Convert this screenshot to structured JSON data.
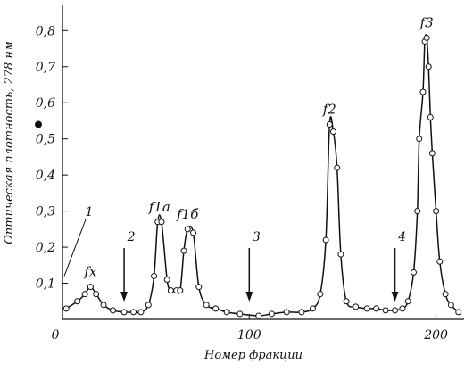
{
  "chart_data": {
    "type": "line",
    "xlabel": "Номер фракции",
    "ylabel": "Оптическая плотность, 278 нм",
    "xlim": [
      0,
      215
    ],
    "ylim": [
      0,
      0.87
    ],
    "x_ticks": [
      0,
      100,
      200
    ],
    "x_tick_labels": [
      "0",
      "100",
      "200"
    ],
    "y_ticks": [
      0.1,
      0.2,
      0.3,
      0.4,
      0.5,
      0.6,
      0.7,
      0.8
    ],
    "y_tick_labels": [
      "0,1",
      "0,2",
      "0,3",
      "0,4",
      "0,5",
      "0,6",
      "0,7",
      "0,8"
    ],
    "grid": false,
    "series": [
      {
        "x": [
          2,
          8,
          12,
          15,
          18,
          22,
          27,
          33,
          38,
          42,
          46,
          49,
          51,
          53,
          56,
          58,
          61,
          63,
          65,
          67,
          70,
          73,
          77,
          82,
          88,
          95,
          105,
          112,
          120,
          128,
          134,
          138,
          141,
          143,
          145,
          147,
          149,
          152,
          157,
          163,
          168,
          173,
          178,
          182,
          185,
          188,
          190,
          191,
          193,
          194,
          195,
          196,
          197,
          198,
          200,
          202,
          205,
          208,
          212
        ],
        "y": [
          0.03,
          0.05,
          0.07,
          0.09,
          0.07,
          0.04,
          0.025,
          0.02,
          0.02,
          0.02,
          0.04,
          0.12,
          0.27,
          0.27,
          0.11,
          0.08,
          0.08,
          0.08,
          0.19,
          0.25,
          0.24,
          0.09,
          0.04,
          0.03,
          0.02,
          0.015,
          0.01,
          0.015,
          0.02,
          0.02,
          0.03,
          0.07,
          0.22,
          0.54,
          0.52,
          0.42,
          0.18,
          0.05,
          0.035,
          0.03,
          0.03,
          0.025,
          0.025,
          0.03,
          0.05,
          0.13,
          0.3,
          0.5,
          0.63,
          0.77,
          0.78,
          0.7,
          0.56,
          0.46,
          0.3,
          0.16,
          0.07,
          0.04,
          0.02
        ]
      }
    ],
    "peak_labels": [
      {
        "text": "fx",
        "x": 15,
        "y": 0.09
      },
      {
        "text": "f1a",
        "x": 52,
        "y": 0.27
      },
      {
        "text": "f1б",
        "x": 67,
        "y": 0.25
      },
      {
        "text": "f2",
        "x": 143,
        "y": 0.54
      },
      {
        "text": "f3",
        "x": 195,
        "y": 0.78
      }
    ],
    "arrow_markers": [
      {
        "label": "2",
        "x": 33
      },
      {
        "label": "3",
        "x": 100
      },
      {
        "label": "4",
        "x": 178
      }
    ],
    "annotations": [
      {
        "text": "1"
      }
    ]
  }
}
